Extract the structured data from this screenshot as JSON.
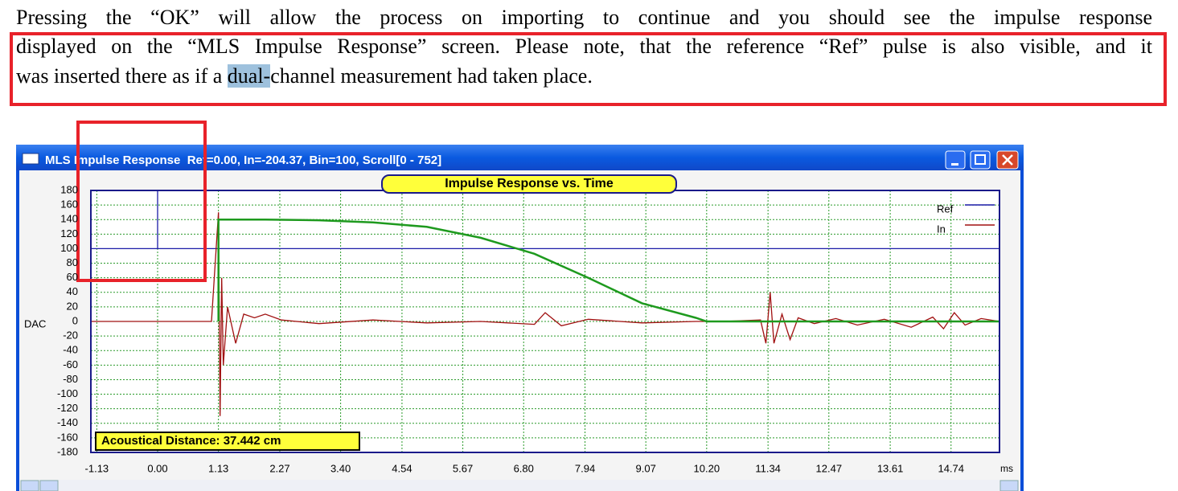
{
  "document": {
    "paragraph": [
      "Pressing the “OK” will allow the process on importing to continue and you should see the impulse response",
      "displayed on the “MLS Impulse Response” screen. Please note, that the reference “Ref” pulse is also visible, and it",
      "was inserted there as if a ",
      "dual-",
      "channel measurement had taken place."
    ]
  },
  "window": {
    "title": "MLS Impulse Response  Ref=0.00, In=-204.37, Bin=100, Scroll[0 - 752]"
  },
  "chart_data": {
    "type": "line",
    "title": "Impulse Response vs. Time",
    "y_label": "DAC",
    "x_unit": "ms",
    "annotation": "Acoustical Distance: 37.442 cm",
    "xlim": [
      -1.24,
      15.64
    ],
    "ylim": [
      -180,
      180
    ],
    "xticks": [
      -1.13,
      {
        "value": 0,
        "label": "0.00"
      },
      1.13,
      2.27,
      {
        "value": 3.4,
        "label": "3.40"
      },
      4.54,
      5.67,
      {
        "value": 6.8,
        "label": "6.80"
      },
      7.94,
      9.07,
      {
        "value": 10.2,
        "label": "10.20"
      },
      11.34,
      12.47,
      13.61,
      14.74
    ],
    "yticks": [
      180,
      160,
      140,
      120,
      100,
      80,
      60,
      40,
      20,
      0,
      -20,
      -40,
      -60,
      -80,
      -100,
      -120,
      -140,
      -160,
      -180
    ],
    "grid": true,
    "legend": "upper right",
    "series": [
      {
        "name": "Ref",
        "color": "#1c1ca8",
        "x": [
          -1.24,
          0,
          0,
          0,
          15.64
        ],
        "values": [
          100,
          100,
          180,
          100,
          100
        ]
      },
      {
        "name": "In",
        "color": "#a01010",
        "x": [
          -1.24,
          1.0,
          1.13,
          1.16,
          1.19,
          1.22,
          1.3,
          1.45,
          1.6,
          1.8,
          2.0,
          2.3,
          3,
          4,
          5,
          6,
          7,
          7.2,
          7.5,
          8,
          9,
          10,
          10.5,
          11.2,
          11.3,
          11.38,
          11.45,
          11.6,
          11.75,
          11.9,
          12.2,
          12.6,
          13,
          13.5,
          14,
          14.4,
          14.6,
          14.8,
          15,
          15.3,
          15.64
        ],
        "values": [
          0,
          0,
          150,
          -130,
          60,
          -60,
          20,
          -30,
          10,
          5,
          10,
          2,
          -3,
          2,
          -2,
          0,
          -4,
          12,
          -6,
          3,
          -2,
          0,
          0,
          2,
          -30,
          40,
          -30,
          10,
          -25,
          5,
          -3,
          4,
          -5,
          3,
          -8,
          6,
          -10,
          12,
          -5,
          4,
          0
        ]
      },
      {
        "color": "#1e9a1e",
        "x": [
          1.13,
          1.13,
          2,
          3,
          4,
          5,
          6,
          7,
          8,
          9,
          10,
          10.2,
          15.64
        ],
        "values": [
          0,
          140,
          140,
          139,
          136,
          130,
          115,
          93,
          60,
          25,
          5,
          0,
          0
        ]
      }
    ]
  }
}
